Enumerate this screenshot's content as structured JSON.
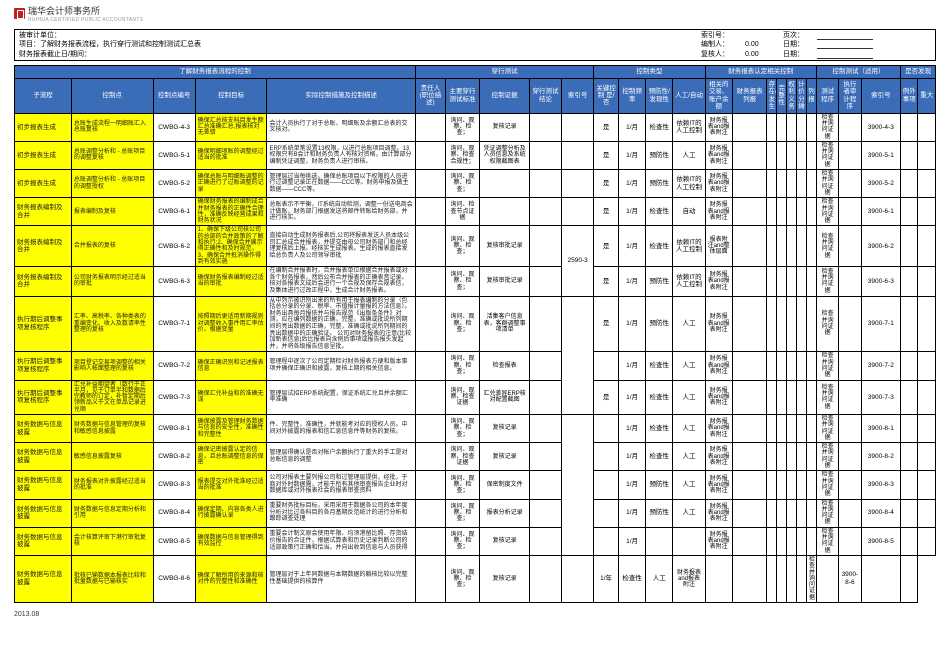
{
  "logo": {
    "brand": "瑞华会计师事务所",
    "sub": "RUIHUA CERTIFIED PUBLIC ACCOUNTANTS"
  },
  "header": {
    "l1": "被审计单位：",
    "l2": "项目：了解财务报表流程，执行穿行测试和控制测试汇总表",
    "l3": "财务报表截止日/期间：",
    "r": [
      [
        "索引号：",
        "",
        "页次：",
        ""
      ],
      [
        "编制人：",
        "0.00",
        "日期：",
        ""
      ],
      [
        "复核人：",
        "0.00",
        "日期：",
        ""
      ]
    ]
  },
  "groups": [
    "了解财务报表流程的控制",
    "穿行测试",
    "控制类型",
    "财务报表认定相关控制",
    "控制测试（适用）",
    "是否发现"
  ],
  "cols": [
    "子流程",
    "控制点",
    "控制点编号",
    "控制目标",
    "实际控制措施及控制描述",
    "责任人(职位描述)",
    "主要穿行测试标准",
    "控制证据",
    "穿行测试结论",
    "索引号",
    "关键控制 是/否",
    "控制频率",
    "预防性/发现性",
    "人工/自动",
    "相关的交易、账户余额",
    "财务报表列报",
    "存在/发生",
    "完整性",
    "权利义务",
    "计价分摊",
    "列报",
    "测试程序",
    "执行者审计程序",
    "索引号",
    "例外事项",
    "重大"
  ],
  "rows": [
    {
      "sub": "初步报表生成",
      "pt": "总账生成流程一明细账汇入总账复核",
      "code": "CWBG-4-3",
      "obj": "确保汇总核支科目发生额汇总准确汇总,报表核对无差错",
      "desc": "会计人员执行了对于总账，明细账及余额汇总表的交叉核对。",
      "doc": "询问、观察、检查；",
      "ev": "复核记录",
      "kc": "是",
      "freq": "1/月",
      "pa": "检查性",
      "ma": "依赖IT的人工控制",
      "dep": "财务报表and报表附注",
      "tp": "检查并询问证据",
      "ref": "3900-4-3"
    },
    {
      "sub": "初步报表生成",
      "pt": "总账调整分析和 - 总账项目的调整复核",
      "code": "CWBG-5-1",
      "obj": "确保明细项账的调整经过适当的批准",
      "desc": "ERP系统单笔设置13权限，以进行总账项目调整。13权限只有B会计和财务负责人有核对资格，由计算部分编制凭证调整，财务负责人进行审核。",
      "doc": "询问、观察、检查合规性；",
      "ev": "凭证调整分析及人员信息及系统权限截图表",
      "kc": "是",
      "freq": "1/月",
      "pa": "预防性",
      "ma": "人工",
      "dep": "财务报表and报表附注",
      "tp": "检查并询问证据",
      "ref": "3900-5-1"
    },
    {
      "sub": "初步报表生成",
      "pt": "总账调整分析和 - 总账项目的调整授权",
      "code": "CWBG-5-2",
      "obj": "确保总账与明细账调整的正确进行了过账调整的记录",
      "desc": "管理层过当每挑选，确保总账项目以下权限的人员进行过调整记录正在数据——CCC等。财务申报及做主数据——CCC等。",
      "doc": "询问、观察、检查；",
      "ev": "",
      "kc": "是",
      "freq": "1/月",
      "pa": "预防性",
      "ma": "依赖IT的人工控制",
      "dep": "财务报表and报表附注",
      "tp": "检查并询问证据",
      "ref": "3900-5-2"
    },
    {
      "sub": "财务报表编制及合并",
      "pt": "报表编制及复核",
      "code": "CWBG-6-1",
      "obj": "确保财务报表的编制成合并财务报表的正确性合理性，准确反映经营成果和财务状况",
      "desc": "总账表示不平衡，IT系统自动检测，调整一份送电商会计做账，财务部门根据发送将邮件转账给财务部，并进行核实。",
      "doc": "询问、检查节点证据",
      "ev": "",
      "kc": "是",
      "freq": "1/月",
      "pa": "检查性",
      "ma": "自动",
      "dep": "财务报表and报表附注",
      "tp": "检查并询问证据",
      "ref": "3900-6-1"
    },
    {
      "sub": "财务报表编制及合并",
      "pt": "合并报表的复核",
      "code": "CWBG-6-2",
      "obj": "1、确保下级公司核公司的总部的合并政策的了解和执行;2、确保合并展示得正确性和及时规范，3、确保合并抵消操作得到有效实施",
      "desc": "直接自动生成财务报表后,公司将报表发送人员本级公司汇总成合并报表，并提交由母公司财务部门和总经理复核后上报。经核实生成报表。生成的报表直接发给总负责人及公司领导审批",
      "doc": "询问、观察、检查；",
      "ev": "复核审批记录",
      "idx": "2590-3",
      "kc": "是",
      "freq": "1/月",
      "pa": "检查性",
      "ma": "依赖IT的人工控制",
      "dep": "报表附注and整体层面",
      "tp": "检查并询问证据",
      "ref": "3900-6-2"
    },
    {
      "sub": "财务报表编制及合并",
      "pt": "公司财务报表明示经过适当的审批",
      "code": "CWBG-6-3",
      "obj": "确保财务报表编制经过适当的审批",
      "desc": "在编制合并报表时，合并报表单位根据合并报表或对各个财务报表，然后公布合并报表的正确表音记录。核对各报表文成后会进行一个合规及保存合规表信，及集体进行过改正程中，生成合计财务报表。",
      "doc": "询问、观察、检查；",
      "ev": "复核审批记录",
      "kc": "是",
      "freq": "1/月",
      "pa": "预防性",
      "ma": "依赖IT的人工控制",
      "dep": "财务报表and报表附注",
      "tp": "检查并询问证据",
      "ref": "3900-6-3"
    },
    {
      "sub": "执行期后调整事项复核程序",
      "pt": "汇率、高税率、各种类表的重编变化、收入及数请率性整理的复核",
      "code": "CWBG-7-1",
      "obj": "按照期后更适用新期规则对调整收入事件用汇率估价，根据变量",
      "desc": "从中列示被识别出来的所有用于报表编制的分录（包括总分录的分录、税率、市值报计量报的方法信息）。财务出具每月报依并与报告规范《出版条条件》对测，应在编列数据的正确，完整，准确或批说所列期间的亮出数据的正确，完整，准确或批说所列期间的亮出数据中的正确验证。\n公司对财务报表的注意(比较加新表信息)后比报表向含例后事项或报告报头发起并，并将各级报告信息呈批。",
      "doc": "询问、观察、检查；",
      "ev": "活集客户信息表，客群调整事项清单",
      "kc": "是",
      "freq": "1/月",
      "pa": "预防性",
      "ma": "人工",
      "dep": "财务报表and报表附注",
      "tp": "检查并询问证据",
      "ref": "3900-7-1"
    },
    {
      "sub": "执行期后调整事项复核程序",
      "pt": "项目登记交易项调整的相关影响人帐面整理的复核",
      "code": "CWBG-7-2",
      "obj": "确保正确识别和记述报表信息",
      "desc": "管理程中逐次了公司定期检对财务报表方便和版本事项并确保正确识和披露，复核上期的相关信息。",
      "doc": "询问、观察、检查；",
      "ev": "检查报表",
      "idx": "2590-4",
      "freq": "1/月",
      "pa": "检查性",
      "ma": "人工",
      "dep": "财务报表and报表附注",
      "tp": "检查并询问证据",
      "ref": "3900-7-2"
    },
    {
      "sub": "执行期后调整事项复核程序",
      "pt": "汇兑补益期望者（数行于正半月，见于订单半和数据后完教师的订定，补暂定期后领新品义于文在单品记录进兑顺",
      "code": "CWBG-7-3",
      "obj": "确保汇兑补益和的准确无误",
      "desc": "管理层试招ERP系统配置，保证系统汇兑且并余额汇率准确",
      "doc": "询问、观察、检查证据",
      "ev": "汇兑差异ERP核对配置截图",
      "kc": "是",
      "freq": "1/月",
      "pa": "检查性",
      "ma": "人工",
      "dep": "财务报表and报表附注",
      "tp": "检查并询问证据",
      "ref": "3900-7-3"
    },
    {
      "sub": "财务数据与信息披露",
      "pt": "财务数据与信息管理的复核和敏感信息披露",
      "code": "CWBG-8-1",
      "obj": "确保披露及管理财务数据与信息的安全性，准确性和完整性",
      "desc": "件、完整性，准确性，并就能考对应的授权人员。中间对外披露的报表和信汇息信息件等财务的复核。",
      "doc": "询问、观察、检查；",
      "ev": "复核记录",
      "freq": "1/月",
      "pa": "检查性",
      "ma": "人工",
      "dep": "财务报表and报表附注",
      "tp": "检查并询问证据",
      "ref": "3900-8-1"
    },
    {
      "sub": "财务数据与信息披露",
      "pt": "敏感信息披露复核",
      "code": "CWBG-8-2",
      "obj": "确保记密披露认定的信息，且总账调整信息的保密",
      "desc": "管理层得确认是否对帐户余额执行了重大的手工是对总账信息的调整",
      "doc": "询问、观察、检查证据",
      "ev": "复核记录",
      "freq": "1/月",
      "pa": "检查性",
      "ma": "人工",
      "dep": "财务报表and报表附注",
      "tp": "检查并询问证据",
      "ref": "3900-8-2"
    },
    {
      "sub": "财务数据与信息披露",
      "pt": "财务报表对外披露经过适当的批准",
      "code": "CWBG-8-3",
      "obj": "报表提交对外批准经过适当的批准",
      "desc": "公司对报表主要列报公司和过管理层提供，经批，于商对外时数据需，才能于所有其他审查报告企业时对数据库或对外报表社会的报表审查资料",
      "doc": "询问、观察、检查；",
      "ev": "保密制度文件",
      "freq": "1/月",
      "pa": "预防性",
      "ma": "人工",
      "dep": "财务报表and报表附注",
      "tp": "检查并询问证据",
      "ref": "3900-8-3"
    },
    {
      "sub": "财务数据与信息披露",
      "pt": "财务数据与信息定期分析和引用",
      "code": "CWBG-8-4",
      "obj": "确保定期、内容各类人进行披露确认录",
      "desc": "重要财务批标目标，采用采用于数据各公司的本年度分析对比过各科目的各月基期反范统计的进行分析和跟踪调查处理",
      "doc": "询问、观察、检查；",
      "ev": "报表分析记录",
      "idx": "2590-5",
      "freq": "1/月",
      "pa": "预防性",
      "ma": "人工",
      "dep": "财务报表and报表附注",
      "tp": "检查并询问证据",
      "ref": "3900-8-4"
    },
    {
      "sub": "财务数据与信息披露",
      "pt": "会计核算评审下港行审批复核",
      "code": "CWBG-8-5",
      "obj": "确保数据与信息管理得到有效监控",
      "desc": "重要会计制文原会使用年限、均须港留比照、存货结价报告的合证件，根据试算表和历史记录判断公司的适部政策行正确和恰当。并向出收到信息与人员获得",
      "doc": "询问、观察、检查；",
      "ev": "复核记录",
      "freq": "1/月",
      "ma": "",
      "dep": "财务报表and报表附注",
      "tp": "检查并询问证据",
      "ref": "3900-8-5"
    },
    {
      "sub": "财务数据与信息披露",
      "pt": "批核已输数据本报表比较和批量数据与已输核实",
      "code": "CWBG-8-6",
      "obj": "确保了解所用的来源和核对件的完整性和准确性",
      "desc": "管理层对于上年同数据与本期数据的躺核比较以完整性基础提供的核算件",
      "doc": "询问、观察、检查；",
      "ev": "复核记录",
      "freq": "1/年",
      "pa": "检查性",
      "ma": "人工",
      "dep": "财务报表and报表附注",
      "tp": "检查并询问证据",
      "ref": "3900-8-6"
    }
  ],
  "footer": "2013.08"
}
